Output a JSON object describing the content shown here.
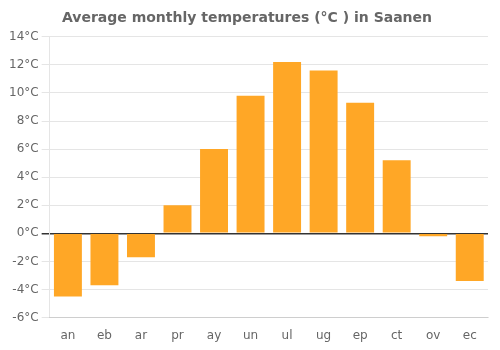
{
  "chart_data": {
    "type": "bar",
    "title": "Average monthly temperatures (°C ) in Saanen",
    "categories": [
      "an",
      "eb",
      "ar",
      "pr",
      "ay",
      "un",
      "ul",
      "ug",
      "ep",
      "ct",
      "ov",
      "ec"
    ],
    "values": [
      -4.5,
      -3.7,
      -1.7,
      2.0,
      6.0,
      9.8,
      12.2,
      11.6,
      9.3,
      5.2,
      -0.2,
      -3.4
    ],
    "color": "#FFA726",
    "ylim": [
      -6,
      14
    ],
    "yticks": [
      {
        "value": -6,
        "label": "-6°C"
      },
      {
        "value": -4,
        "label": "-4°C"
      },
      {
        "value": -2,
        "label": "-2°C"
      },
      {
        "value": 0,
        "label": "0°C"
      },
      {
        "value": 2,
        "label": "2°C"
      },
      {
        "value": 4,
        "label": "4°C"
      },
      {
        "value": 6,
        "label": "6°C"
      },
      {
        "value": 8,
        "label": "8°C"
      },
      {
        "value": 10,
        "label": "10°C"
      },
      {
        "value": 12,
        "label": "12°C"
      },
      {
        "value": 14,
        "label": "14°C"
      }
    ],
    "grid": true
  }
}
